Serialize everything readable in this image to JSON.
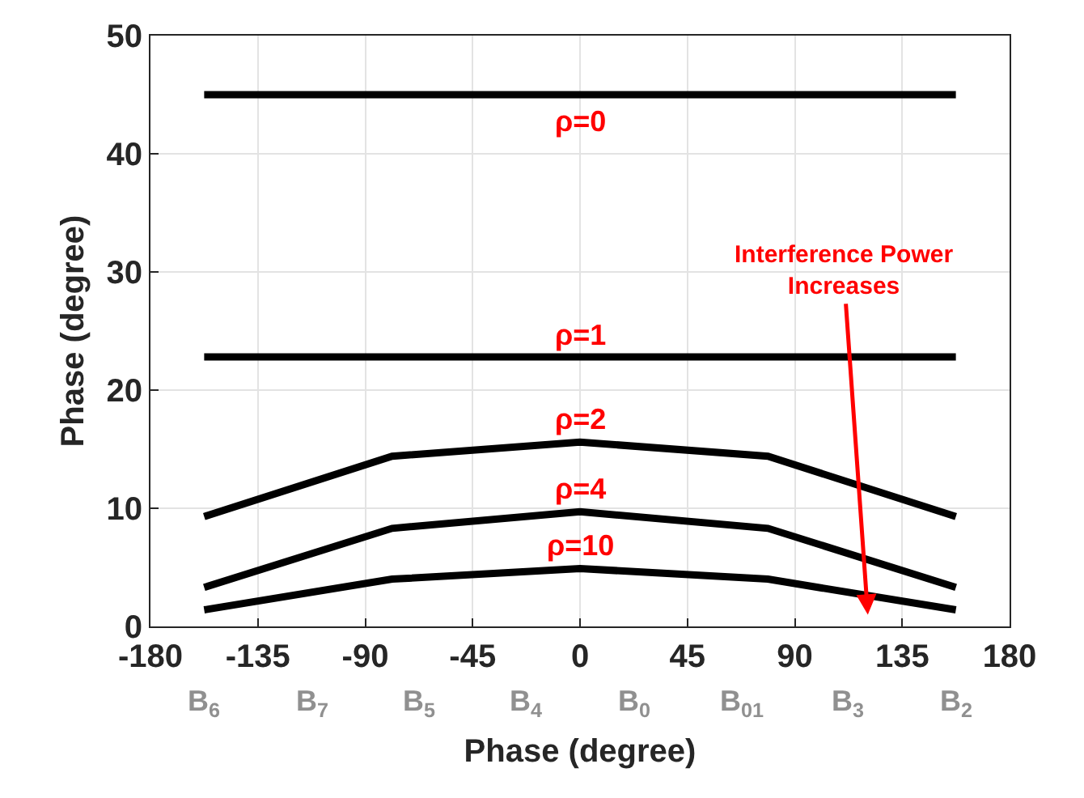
{
  "chart_data": {
    "type": "line",
    "xlabel": "Phase (degree)",
    "ylabel": "Phase (degree)",
    "x": [
      -157.5,
      -78.75,
      0,
      78.75,
      157.5
    ],
    "series": [
      {
        "name": "ρ=0",
        "color": "#000000",
        "values": [
          45,
          45,
          45,
          45,
          45
        ]
      },
      {
        "name": "ρ=1",
        "color": "#000000",
        "values": [
          22.8,
          22.8,
          22.8,
          22.8,
          22.8
        ]
      },
      {
        "name": "ρ=2",
        "color": "#000000",
        "values": [
          9.3,
          14.4,
          15.6,
          14.4,
          9.3
        ]
      },
      {
        "name": "ρ=4",
        "color": "#000000",
        "values": [
          3.3,
          8.3,
          9.7,
          8.3,
          3.3
        ]
      },
      {
        "name": "ρ=10",
        "color": "#000000",
        "values": [
          1.4,
          4.0,
          4.9,
          4.0,
          1.4
        ]
      }
    ],
    "xlim": [
      -180,
      180
    ],
    "xticks": [
      -180,
      -135,
      -90,
      -45,
      0,
      45,
      90,
      135,
      180
    ],
    "ylim": [
      0,
      50
    ],
    "yticks": [
      0,
      10,
      20,
      30,
      40,
      50
    ],
    "grid": true,
    "legend": false,
    "marker": "none",
    "line_style": "solid",
    "annotations": [
      "Interference Power\nIncreases",
      "B$_{6}$",
      "B$_{7}$",
      "B$_{5}$",
      "B$_{4}$",
      "B$_{0}$",
      "B$_{01}$",
      "B$_{3}$",
      "B$_{2}$"
    ]
  }
}
